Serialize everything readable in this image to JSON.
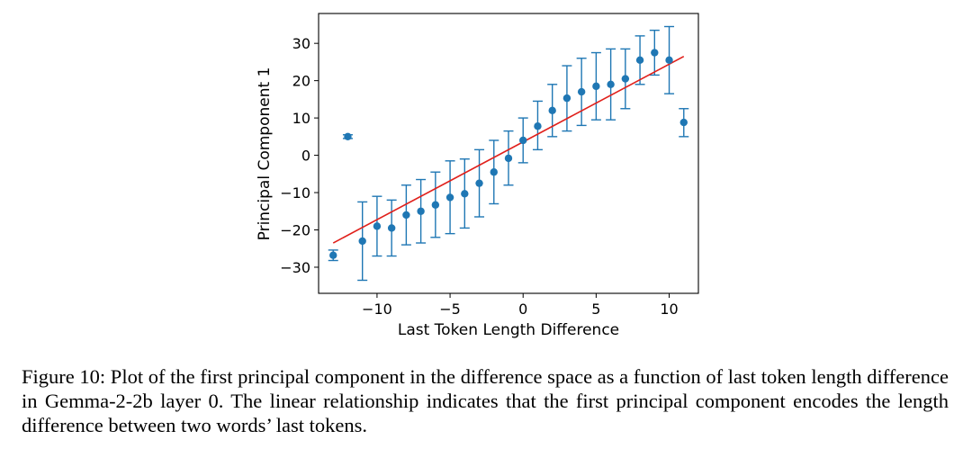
{
  "chart_data": {
    "type": "scatter",
    "title": "",
    "xlabel": "Last Token Length Difference",
    "ylabel": "Principal Component 1",
    "xlim": [
      -14,
      12
    ],
    "ylim": [
      -37,
      38
    ],
    "xticks": [
      -10,
      -5,
      0,
      5,
      10
    ],
    "xtick_labels": [
      "−10",
      "−5",
      "0",
      "5",
      "10"
    ],
    "yticks": [
      -30,
      -20,
      -10,
      0,
      10,
      20,
      30
    ],
    "ytick_labels": [
      "−30",
      "−20",
      "−10",
      "0",
      "10",
      "20",
      "30"
    ],
    "grid": false,
    "point_color": "#1f77b4",
    "errorbar_color": "#1f77b4",
    "fit_color": "#e0201b",
    "points": [
      {
        "x": -13,
        "y": -26.8,
        "low": -28.2,
        "high": -25.4
      },
      {
        "x": -12,
        "y": 5.0,
        "low": 4.5,
        "high": 5.5
      },
      {
        "x": -11,
        "y": -23.0,
        "low": -33.5,
        "high": -12.5
      },
      {
        "x": -10,
        "y": -19.0,
        "low": -27.0,
        "high": -11.0
      },
      {
        "x": -9,
        "y": -19.5,
        "low": -27.0,
        "high": -12.0
      },
      {
        "x": -8,
        "y": -16.0,
        "low": -24.0,
        "high": -8.0
      },
      {
        "x": -7,
        "y": -15.0,
        "low": -23.5,
        "high": -6.5
      },
      {
        "x": -6,
        "y": -13.3,
        "low": -22.0,
        "high": -4.5
      },
      {
        "x": -5,
        "y": -11.3,
        "low": -21.0,
        "high": -1.5
      },
      {
        "x": -4,
        "y": -10.3,
        "low": -19.5,
        "high": -1.0
      },
      {
        "x": -3,
        "y": -7.5,
        "low": -16.5,
        "high": 1.5
      },
      {
        "x": -2,
        "y": -4.5,
        "low": -13.0,
        "high": 4.0
      },
      {
        "x": -1,
        "y": -0.8,
        "low": -8.0,
        "high": 6.5
      },
      {
        "x": 0,
        "y": 4.0,
        "low": -2.0,
        "high": 10.0
      },
      {
        "x": 1,
        "y": 7.8,
        "low": 1.5,
        "high": 14.5
      },
      {
        "x": 2,
        "y": 12.0,
        "low": 5.0,
        "high": 19.0
      },
      {
        "x": 3,
        "y": 15.3,
        "low": 6.5,
        "high": 24.0
      },
      {
        "x": 4,
        "y": 17.0,
        "low": 8.0,
        "high": 26.0
      },
      {
        "x": 5,
        "y": 18.5,
        "low": 9.5,
        "high": 27.5
      },
      {
        "x": 6,
        "y": 19.0,
        "low": 9.5,
        "high": 28.5
      },
      {
        "x": 7,
        "y": 20.5,
        "low": 12.5,
        "high": 28.5
      },
      {
        "x": 8,
        "y": 25.5,
        "low": 19.0,
        "high": 32.0
      },
      {
        "x": 9,
        "y": 27.5,
        "low": 21.5,
        "high": 33.5
      },
      {
        "x": 10,
        "y": 25.5,
        "low": 16.5,
        "high": 34.5
      },
      {
        "x": 11,
        "y": 8.8,
        "low": 5.0,
        "high": 12.5
      }
    ],
    "fit_line": {
      "x": [
        -13,
        11
      ],
      "y": [
        -23.5,
        26.5
      ]
    }
  },
  "caption": "Figure 10: Plot of the first principal component in the difference space as a function of last token length difference in Gemma-2-2b layer 0. The linear relationship indicates that the first principal component encodes the length difference between two words’ last tokens."
}
